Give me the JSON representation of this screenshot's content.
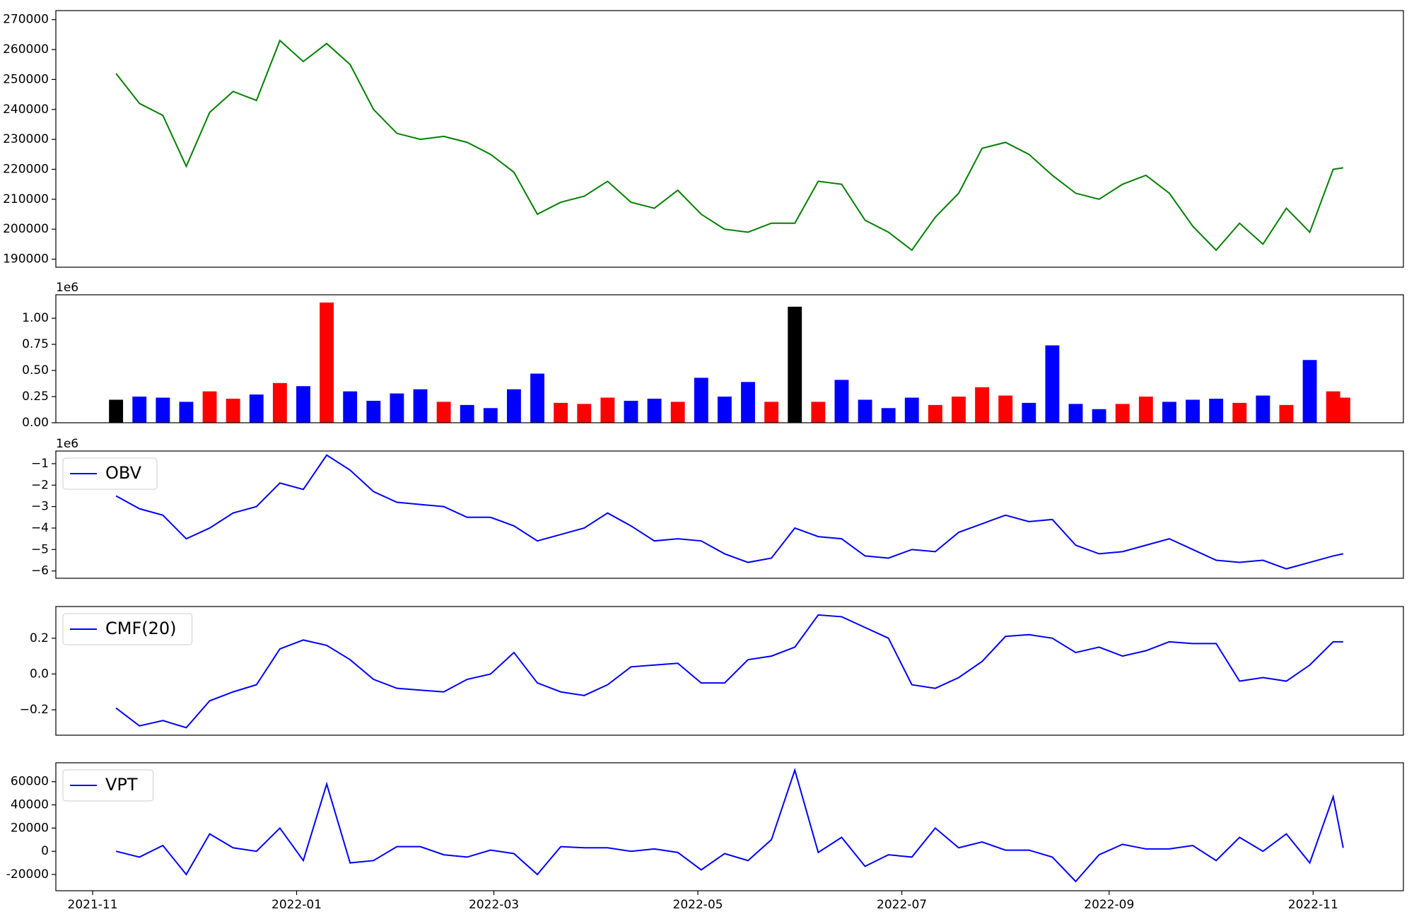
{
  "chart_data": [
    {
      "type": "line",
      "color": "green",
      "x": [
        "2021-11-08",
        "2021-11-15",
        "2021-11-22",
        "2021-11-29",
        "2021-12-06",
        "2021-12-13",
        "2021-12-20",
        "2021-12-27",
        "2022-01-03",
        "2022-01-10",
        "2022-01-17",
        "2022-01-24",
        "2022-01-31",
        "2022-02-07",
        "2022-02-14",
        "2022-02-21",
        "2022-02-28",
        "2022-03-07",
        "2022-03-14",
        "2022-03-21",
        "2022-03-28",
        "2022-04-04",
        "2022-04-11",
        "2022-04-18",
        "2022-04-25",
        "2022-05-02",
        "2022-05-09",
        "2022-05-16",
        "2022-05-23",
        "2022-05-30",
        "2022-06-06",
        "2022-06-13",
        "2022-06-20",
        "2022-06-27",
        "2022-07-04",
        "2022-07-11",
        "2022-07-18",
        "2022-07-25",
        "2022-08-01",
        "2022-08-08",
        "2022-08-15",
        "2022-08-22",
        "2022-08-29",
        "2022-09-05",
        "2022-09-12",
        "2022-09-19",
        "2022-09-26",
        "2022-10-03",
        "2022-10-10",
        "2022-10-17",
        "2022-10-24",
        "2022-10-31",
        "2022-11-07",
        "2022-11-10"
      ],
      "values": [
        252000,
        242000,
        238000,
        221000,
        239000,
        246000,
        243000,
        263000,
        256000,
        262000,
        255000,
        240000,
        232000,
        230000,
        231000,
        229000,
        225000,
        219000,
        205000,
        209000,
        211000,
        216000,
        209000,
        207000,
        213000,
        205000,
        200000,
        199000,
        202000,
        202000,
        216000,
        215000,
        203000,
        199000,
        193000,
        204000,
        212000,
        227000,
        229000,
        225000,
        218000,
        212000,
        210000,
        215000,
        218000,
        212000,
        201000,
        193000,
        202000,
        195000,
        207000,
        199000,
        220000,
        220500
      ],
      "xlim": [
        "2021-10-21",
        "2022-11-28"
      ],
      "ylim": [
        187300,
        273000
      ],
      "yticks": [
        190000,
        200000,
        210000,
        220000,
        230000,
        240000,
        250000,
        260000,
        270000
      ]
    },
    {
      "type": "bar",
      "up_color": "red",
      "down_color": "blue",
      "flat_color": "black",
      "offset_text": "1e6",
      "x": [
        "2021-11-08",
        "2021-11-15",
        "2021-11-22",
        "2021-11-29",
        "2021-12-06",
        "2021-12-13",
        "2021-12-20",
        "2021-12-27",
        "2022-01-03",
        "2022-01-10",
        "2022-01-17",
        "2022-01-24",
        "2022-01-31",
        "2022-02-07",
        "2022-02-14",
        "2022-02-21",
        "2022-02-28",
        "2022-03-07",
        "2022-03-14",
        "2022-03-21",
        "2022-03-28",
        "2022-04-04",
        "2022-04-11",
        "2022-04-18",
        "2022-04-25",
        "2022-05-02",
        "2022-05-09",
        "2022-05-16",
        "2022-05-23",
        "2022-05-30",
        "2022-06-06",
        "2022-06-13",
        "2022-06-20",
        "2022-06-27",
        "2022-07-04",
        "2022-07-11",
        "2022-07-18",
        "2022-07-25",
        "2022-08-01",
        "2022-08-08",
        "2022-08-15",
        "2022-08-22",
        "2022-08-29",
        "2022-09-05",
        "2022-09-12",
        "2022-09-19",
        "2022-09-26",
        "2022-10-03",
        "2022-10-10",
        "2022-10-17",
        "2022-10-24",
        "2022-10-31",
        "2022-11-07",
        "2022-11-10"
      ],
      "values": [
        220000,
        250000,
        240000,
        200000,
        300000,
        230000,
        270000,
        380000,
        350000,
        1150000,
        300000,
        210000,
        280000,
        320000,
        200000,
        170000,
        140000,
        320000,
        470000,
        190000,
        180000,
        240000,
        210000,
        230000,
        200000,
        430000,
        250000,
        390000,
        200000,
        1110000,
        200000,
        410000,
        220000,
        140000,
        240000,
        170000,
        250000,
        340000,
        260000,
        190000,
        740000,
        180000,
        130000,
        180000,
        250000,
        200000,
        220000,
        230000,
        190000,
        260000,
        170000,
        600000,
        300000,
        240000
      ],
      "xlim": [
        "2021-10-21",
        "2022-11-28"
      ],
      "ylim": [
        0,
        1224000
      ],
      "yticks": [
        {
          "value": 0,
          "label": "0.00"
        },
        {
          "value": 250000,
          "label": "0.25"
        },
        {
          "value": 500000,
          "label": "0.50"
        },
        {
          "value": 750000,
          "label": "0.75"
        },
        {
          "value": 1000000,
          "label": "1.00"
        }
      ]
    },
    {
      "type": "line",
      "offset_text": "1e6",
      "legend": "upper left",
      "x": [
        "2021-11-08",
        "2021-11-15",
        "2021-11-22",
        "2021-11-29",
        "2021-12-06",
        "2021-12-13",
        "2021-12-20",
        "2021-12-27",
        "2022-01-03",
        "2022-01-10",
        "2022-01-17",
        "2022-01-24",
        "2022-01-31",
        "2022-02-07",
        "2022-02-14",
        "2022-02-21",
        "2022-02-28",
        "2022-03-07",
        "2022-03-14",
        "2022-03-21",
        "2022-03-28",
        "2022-04-04",
        "2022-04-11",
        "2022-04-18",
        "2022-04-25",
        "2022-05-02",
        "2022-05-09",
        "2022-05-16",
        "2022-05-23",
        "2022-05-30",
        "2022-06-06",
        "2022-06-13",
        "2022-06-20",
        "2022-06-27",
        "2022-07-04",
        "2022-07-11",
        "2022-07-18",
        "2022-07-25",
        "2022-08-01",
        "2022-08-08",
        "2022-08-15",
        "2022-08-22",
        "2022-08-29",
        "2022-09-05",
        "2022-09-12",
        "2022-09-19",
        "2022-09-26",
        "2022-10-03",
        "2022-10-10",
        "2022-10-17",
        "2022-10-24",
        "2022-10-31",
        "2022-11-07",
        "2022-11-10"
      ],
      "series": [
        {
          "name": "OBV",
          "color": "blue",
          "values": [
            -2500000,
            -3100000,
            -3400000,
            -4500000,
            -4000000,
            -3300000,
            -3000000,
            -1900000,
            -2200000,
            -600000,
            -1300000,
            -2300000,
            -2800000,
            -2900000,
            -3000000,
            -3500000,
            -3500000,
            -3900000,
            -4600000,
            -4300000,
            -4000000,
            -3300000,
            -3900000,
            -4600000,
            -4500000,
            -4600000,
            -5200000,
            -5600000,
            -5400000,
            -4000000,
            -4400000,
            -4500000,
            -5300000,
            -5400000,
            -5000000,
            -5100000,
            -4200000,
            -3800000,
            -3400000,
            -3700000,
            -3600000,
            -4800000,
            -5200000,
            -5100000,
            -4800000,
            -4500000,
            -5000000,
            -5500000,
            -5600000,
            -5500000,
            -5900000,
            -5600000,
            -5300000,
            -5200000
          ]
        }
      ],
      "xlim": [
        "2021-10-21",
        "2022-11-28"
      ],
      "ylim": [
        -6340000,
        -410000
      ],
      "yticks": [
        {
          "value": -6000000,
          "label": "−6"
        },
        {
          "value": -5000000,
          "label": "−5"
        },
        {
          "value": -4000000,
          "label": "−4"
        },
        {
          "value": -3000000,
          "label": "−3"
        },
        {
          "value": -2000000,
          "label": "−2"
        },
        {
          "value": -1000000,
          "label": "−1"
        }
      ]
    },
    {
      "type": "line",
      "legend": "upper left",
      "x": [
        "2021-11-08",
        "2021-11-15",
        "2021-11-22",
        "2021-11-29",
        "2021-12-06",
        "2021-12-13",
        "2021-12-20",
        "2021-12-27",
        "2022-01-03",
        "2022-01-10",
        "2022-01-17",
        "2022-01-24",
        "2022-01-31",
        "2022-02-07",
        "2022-02-14",
        "2022-02-21",
        "2022-02-28",
        "2022-03-07",
        "2022-03-14",
        "2022-03-21",
        "2022-03-28",
        "2022-04-04",
        "2022-04-11",
        "2022-04-18",
        "2022-04-25",
        "2022-05-02",
        "2022-05-09",
        "2022-05-16",
        "2022-05-23",
        "2022-05-30",
        "2022-06-06",
        "2022-06-13",
        "2022-06-20",
        "2022-06-27",
        "2022-07-04",
        "2022-07-11",
        "2022-07-18",
        "2022-07-25",
        "2022-08-01",
        "2022-08-08",
        "2022-08-15",
        "2022-08-22",
        "2022-08-29",
        "2022-09-05",
        "2022-09-12",
        "2022-09-19",
        "2022-09-26",
        "2022-10-03",
        "2022-10-10",
        "2022-10-17",
        "2022-10-24",
        "2022-10-31",
        "2022-11-07",
        "2022-11-10"
      ],
      "series": [
        {
          "name": "CMF(20)",
          "color": "blue",
          "values": [
            -0.19,
            -0.29,
            -0.26,
            -0.3,
            -0.15,
            -0.1,
            -0.06,
            0.14,
            0.19,
            0.16,
            0.08,
            -0.03,
            -0.08,
            -0.09,
            -0.1,
            -0.03,
            0.0,
            0.12,
            -0.05,
            -0.1,
            -0.12,
            -0.06,
            0.04,
            0.05,
            0.06,
            -0.05,
            -0.05,
            0.08,
            0.1,
            0.15,
            0.33,
            0.32,
            0.26,
            0.2,
            -0.06,
            -0.08,
            -0.02,
            0.07,
            0.21,
            0.22,
            0.2,
            0.12,
            0.15,
            0.1,
            0.13,
            0.18,
            0.17,
            0.17,
            -0.04,
            -0.02,
            -0.04,
            0.05,
            0.18,
            0.18
          ]
        }
      ],
      "xlim": [
        "2021-10-21",
        "2022-11-28"
      ],
      "ylim": [
        -0.342,
        0.377
      ],
      "yticks": [
        {
          "value": -0.2,
          "label": "−0.2"
        },
        {
          "value": 0,
          "label": "0.0"
        },
        {
          "value": 0.2,
          "label": "0.2"
        }
      ]
    },
    {
      "type": "line",
      "legend": "upper left",
      "x": [
        "2021-11-08",
        "2021-11-15",
        "2021-11-22",
        "2021-11-29",
        "2021-12-06",
        "2021-12-13",
        "2021-12-20",
        "2021-12-27",
        "2022-01-03",
        "2022-01-10",
        "2022-01-17",
        "2022-01-24",
        "2022-01-31",
        "2022-02-07",
        "2022-02-14",
        "2022-02-21",
        "2022-02-28",
        "2022-03-07",
        "2022-03-14",
        "2022-03-21",
        "2022-03-28",
        "2022-04-04",
        "2022-04-11",
        "2022-04-18",
        "2022-04-25",
        "2022-05-02",
        "2022-05-09",
        "2022-05-16",
        "2022-05-23",
        "2022-05-30",
        "2022-06-06",
        "2022-06-13",
        "2022-06-20",
        "2022-06-27",
        "2022-07-04",
        "2022-07-11",
        "2022-07-18",
        "2022-07-25",
        "2022-08-01",
        "2022-08-08",
        "2022-08-15",
        "2022-08-22",
        "2022-08-29",
        "2022-09-05",
        "2022-09-12",
        "2022-09-19",
        "2022-09-26",
        "2022-10-03",
        "2022-10-10",
        "2022-10-17",
        "2022-10-24",
        "2022-10-31",
        "2022-11-07",
        "2022-11-10"
      ],
      "series": [
        {
          "name": "VPT",
          "color": "blue",
          "values": [
            0,
            -5000,
            5000,
            -20000,
            15000,
            3000,
            0,
            20000,
            -8000,
            58000,
            -10000,
            -8000,
            4000,
            4000,
            -3000,
            -5000,
            1000,
            -2000,
            -20000,
            4000,
            3000,
            3000,
            0,
            2000,
            -1000,
            -16000,
            -2000,
            -8000,
            10000,
            70000,
            -1000,
            12000,
            -13000,
            -3000,
            -5000,
            20000,
            3000,
            8000,
            1000,
            1000,
            -5000,
            -26000,
            -3000,
            6000,
            2000,
            2000,
            5000,
            -8000,
            12000,
            0,
            15000,
            -10000,
            47000,
            3000
          ]
        }
      ],
      "xlim": [
        "2021-10-21",
        "2022-11-28"
      ],
      "ylim": [
        -34000,
        76300
      ],
      "yticks": [
        -20000,
        0,
        20000,
        40000,
        60000
      ],
      "xticks": [
        {
          "value": "2021-11-01",
          "label": "2021-11"
        },
        {
          "value": "2022-01-01",
          "label": "2022-01"
        },
        {
          "value": "2022-03-01",
          "label": "2022-03"
        },
        {
          "value": "2022-05-01",
          "label": "2022-05"
        },
        {
          "value": "2022-07-01",
          "label": "2022-07"
        },
        {
          "value": "2022-09-01",
          "label": "2022-09"
        },
        {
          "value": "2022-11-01",
          "label": "2022-11"
        }
      ]
    }
  ]
}
